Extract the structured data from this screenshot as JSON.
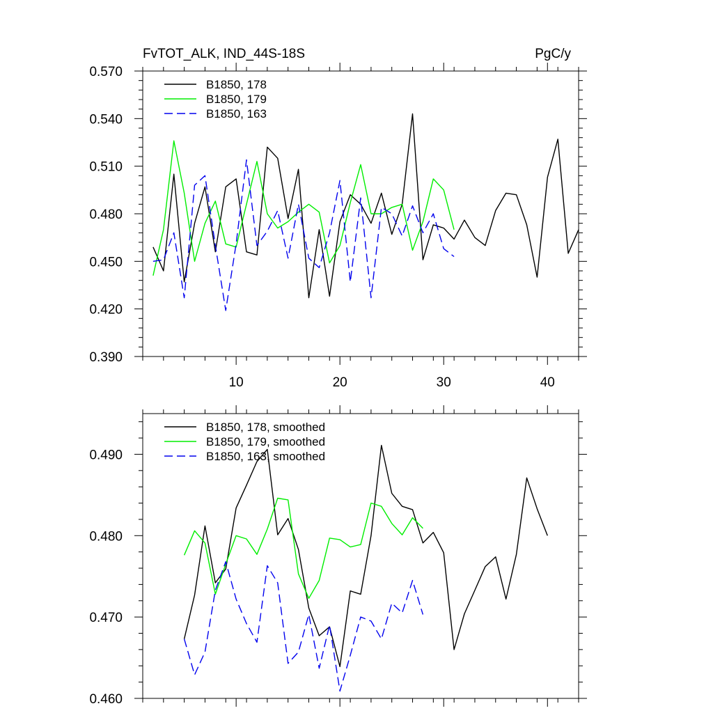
{
  "chart_data": [
    {
      "type": "line",
      "title_left": "FvTOT_ALK, IND_44S-18S",
      "title_right": "PgC/y",
      "xlim": [
        1,
        43
      ],
      "ylim": [
        0.39,
        0.57
      ],
      "yticks": [
        0.39,
        0.42,
        0.45,
        0.48,
        0.51,
        0.54,
        0.57
      ],
      "ytick_labels": [
        "0.390",
        "0.420",
        "0.450",
        "0.480",
        "0.510",
        "0.540",
        "0.570"
      ],
      "xticks": [
        10,
        20,
        30,
        40
      ],
      "xtick_labels": [
        "10",
        "20",
        "30",
        "40"
      ],
      "legend_position": "top-left",
      "series": [
        {
          "name": "B1850, 178",
          "color": "#000000",
          "dash": "solid",
          "x": [
            2,
            3,
            4,
            5,
            6,
            7,
            8,
            9,
            10,
            11,
            12,
            13,
            14,
            15,
            16,
            17,
            18,
            19,
            20,
            21,
            22,
            23,
            24,
            25,
            26,
            27,
            28,
            29,
            30,
            31,
            32,
            33,
            34,
            35,
            36,
            37,
            38,
            39,
            40,
            41,
            42,
            43
          ],
          "y": [
            0.459,
            0.444,
            0.505,
            0.437,
            0.474,
            0.497,
            0.456,
            0.497,
            0.502,
            0.456,
            0.454,
            0.522,
            0.515,
            0.477,
            0.508,
            0.427,
            0.47,
            0.428,
            0.475,
            0.492,
            0.486,
            0.474,
            0.493,
            0.467,
            0.486,
            0.543,
            0.451,
            0.473,
            0.471,
            0.464,
            0.476,
            0.465,
            0.46,
            0.482,
            0.493,
            0.492,
            0.473,
            0.44,
            0.503,
            0.527,
            0.455,
            0.47
          ]
        },
        {
          "name": "B1850, 179",
          "color": "#00ee00",
          "dash": "solid",
          "x": [
            2,
            3,
            4,
            5,
            6,
            7,
            8,
            9,
            10,
            11,
            12,
            13,
            14,
            15,
            16,
            17,
            18,
            19,
            20,
            21,
            22,
            23,
            24,
            25,
            26,
            27,
            28,
            29,
            30,
            31
          ],
          "y": [
            0.441,
            0.47,
            0.526,
            0.493,
            0.45,
            0.474,
            0.488,
            0.461,
            0.459,
            0.486,
            0.513,
            0.48,
            0.471,
            0.475,
            0.481,
            0.486,
            0.481,
            0.449,
            0.46,
            0.487,
            0.511,
            0.48,
            0.48,
            0.484,
            0.486,
            0.457,
            0.475,
            0.502,
            0.495,
            0.47
          ]
        },
        {
          "name": "B1850, 163",
          "color": "#0000ee",
          "dash": "dashed",
          "x": [
            2,
            3,
            4,
            5,
            6,
            7,
            8,
            9,
            10,
            11,
            12,
            13,
            14,
            15,
            16,
            17,
            18,
            19,
            20,
            21,
            22,
            23,
            24,
            25,
            26,
            27,
            28,
            29,
            30,
            31
          ],
          "y": [
            0.45,
            0.451,
            0.468,
            0.427,
            0.498,
            0.504,
            0.46,
            0.419,
            0.461,
            0.514,
            0.46,
            0.469,
            0.482,
            0.452,
            0.486,
            0.452,
            0.446,
            0.468,
            0.501,
            0.437,
            0.49,
            0.427,
            0.484,
            0.48,
            0.466,
            0.485,
            0.468,
            0.48,
            0.458,
            0.453
          ]
        }
      ]
    },
    {
      "type": "line",
      "xlim": [
        1,
        43
      ],
      "ylim": [
        0.46,
        0.495
      ],
      "yticks": [
        0.46,
        0.47,
        0.48,
        0.49
      ],
      "ytick_labels": [
        "0.460",
        "0.470",
        "0.480",
        "0.490"
      ],
      "xticks": [
        10,
        20,
        30,
        40
      ],
      "xtick_labels": [],
      "legend_position": "top-left",
      "series": [
        {
          "name": "B1850, 178, smoothed",
          "color": "#000000",
          "dash": "solid",
          "x": [
            5,
            6,
            7,
            8,
            9,
            10,
            11,
            12,
            13,
            14,
            15,
            16,
            17,
            18,
            19,
            20,
            21,
            22,
            23,
            24,
            25,
            26,
            27,
            28,
            29,
            30,
            31,
            32,
            33,
            34,
            35,
            36,
            37,
            38,
            39,
            40
          ],
          "y": [
            0.4673,
            0.4727,
            0.4812,
            0.4742,
            0.4759,
            0.4834,
            0.4862,
            0.4891,
            0.4906,
            0.4801,
            0.4821,
            0.4783,
            0.4711,
            0.4677,
            0.4688,
            0.4639,
            0.4732,
            0.4728,
            0.48,
            0.4911,
            0.4852,
            0.4836,
            0.4832,
            0.4791,
            0.4804,
            0.4779,
            0.466,
            0.4704,
            0.4733,
            0.4762,
            0.4774,
            0.4722,
            0.4777,
            0.4871,
            0.4833,
            0.48
          ]
        },
        {
          "name": "B1850, 179, smoothed",
          "color": "#00ee00",
          "dash": "solid",
          "x": [
            5,
            6,
            7,
            8,
            9,
            10,
            11,
            12,
            13,
            14,
            15,
            16,
            17,
            18,
            19,
            20,
            21,
            22,
            23,
            24,
            25,
            26,
            27,
            28
          ],
          "y": [
            0.4776,
            0.4806,
            0.4791,
            0.4728,
            0.4765,
            0.48,
            0.4796,
            0.4777,
            0.4808,
            0.4846,
            0.4844,
            0.4753,
            0.4723,
            0.4745,
            0.4797,
            0.4795,
            0.4786,
            0.4789,
            0.484,
            0.4836,
            0.4815,
            0.4801,
            0.4822,
            0.4809
          ]
        },
        {
          "name": "B1850, 163, smoothed",
          "color": "#0000ee",
          "dash": "dashed",
          "x": [
            5,
            6,
            7,
            8,
            9,
            10,
            11,
            12,
            13,
            14,
            15,
            16,
            17,
            18,
            19,
            20,
            21,
            22,
            23,
            24,
            25,
            26,
            27,
            28
          ],
          "y": [
            0.4673,
            0.4629,
            0.4657,
            0.4733,
            0.4768,
            0.4722,
            0.4692,
            0.4669,
            0.4763,
            0.4742,
            0.4643,
            0.4657,
            0.4703,
            0.4637,
            0.469,
            0.4609,
            0.4653,
            0.47,
            0.4695,
            0.4673,
            0.4717,
            0.4705,
            0.4745,
            0.4703
          ]
        }
      ]
    }
  ]
}
